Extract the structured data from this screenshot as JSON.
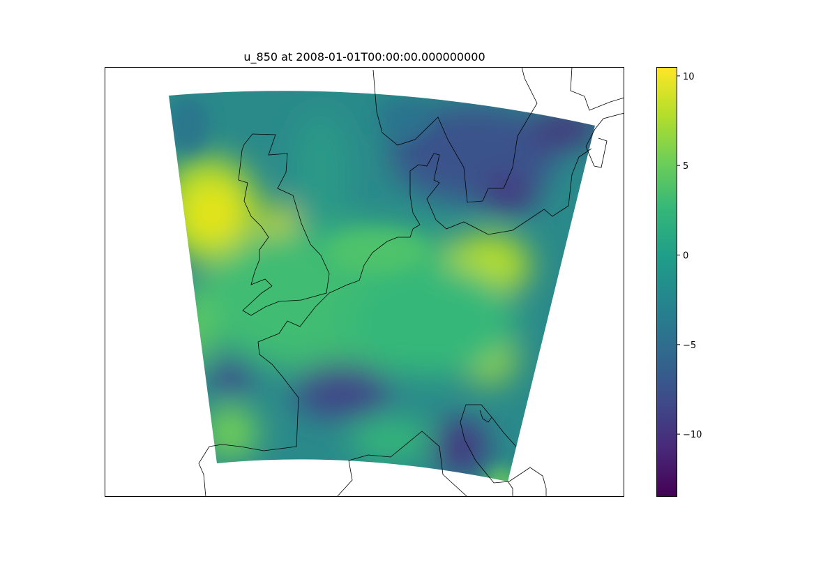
{
  "title": "u_850 at 2008-01-01T00:00:00.000000000",
  "colorbar": {
    "colormap": "viridis",
    "min": -13.5,
    "max": 10.5,
    "ticks": [
      {
        "value": 10,
        "label": "10"
      },
      {
        "value": 5,
        "label": "5"
      },
      {
        "value": 0,
        "label": "0"
      },
      {
        "value": -5,
        "label": "−5"
      },
      {
        "value": -10,
        "label": "−10"
      }
    ],
    "stops": [
      "#440154",
      "#482878",
      "#3e4a89",
      "#31688e",
      "#26828e",
      "#1f9e89",
      "#35b779",
      "#6ece58",
      "#b5de2b",
      "#fde725"
    ]
  },
  "map": {
    "variable": "u_850",
    "time": "2008-01-01T00:00:00.000000000",
    "field_background": "#2a8a8a",
    "coastline_color": "#000000"
  }
}
